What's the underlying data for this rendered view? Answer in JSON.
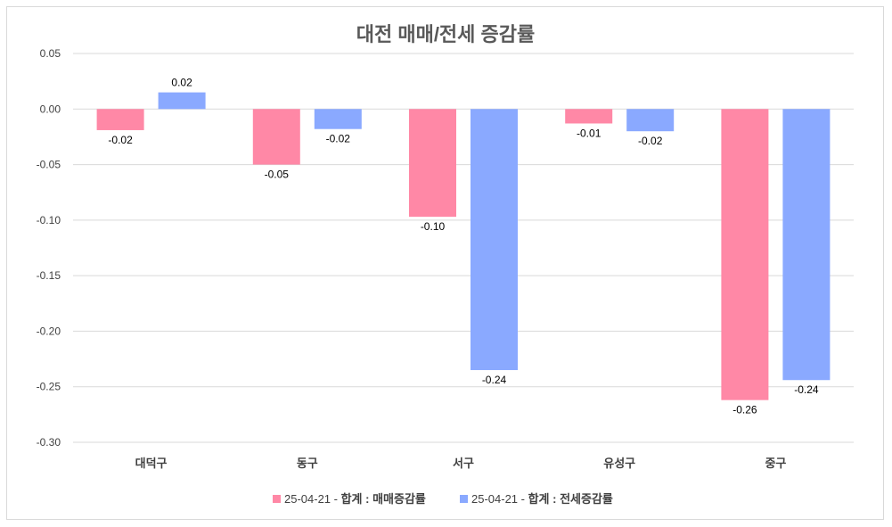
{
  "chart_data": {
    "type": "bar",
    "title": "대전 매매/전세 증감률",
    "categories": [
      "대덕구",
      "동구",
      "서구",
      "유성구",
      "중구"
    ],
    "series": [
      {
        "name": "25-04-21 - 합계 : 매매증감률",
        "legend_prefix": "25-04-21 - ",
        "legend_bold": "합계 : 매매증감률",
        "color": "#ff88a6",
        "values": [
          -0.019,
          -0.05,
          -0.097,
          -0.013,
          -0.262
        ],
        "labels": [
          "-0.02",
          "-0.05",
          "-0.10",
          "-0.01",
          "-0.26"
        ]
      },
      {
        "name": "25-04-21 - 합계 : 전세증감률",
        "legend_prefix": "25-04-21 - ",
        "legend_bold": "합계 : 전세증감률",
        "color": "#8aa9ff",
        "values": [
          0.015,
          -0.018,
          -0.235,
          -0.02,
          -0.244
        ],
        "labels": [
          "0.02",
          "-0.02",
          "-0.24",
          "-0.02",
          "-0.24"
        ]
      }
    ],
    "ylim": [
      -0.3,
      0.05
    ],
    "yticks": [
      0.05,
      0.0,
      -0.05,
      -0.1,
      -0.15,
      -0.2,
      -0.25,
      -0.3
    ],
    "ytick_labels": [
      "0.05",
      "0.00",
      "-0.05",
      "-0.10",
      "-0.15",
      "-0.20",
      "-0.25",
      "-0.30"
    ],
    "grid": true,
    "legend": "bottom"
  }
}
